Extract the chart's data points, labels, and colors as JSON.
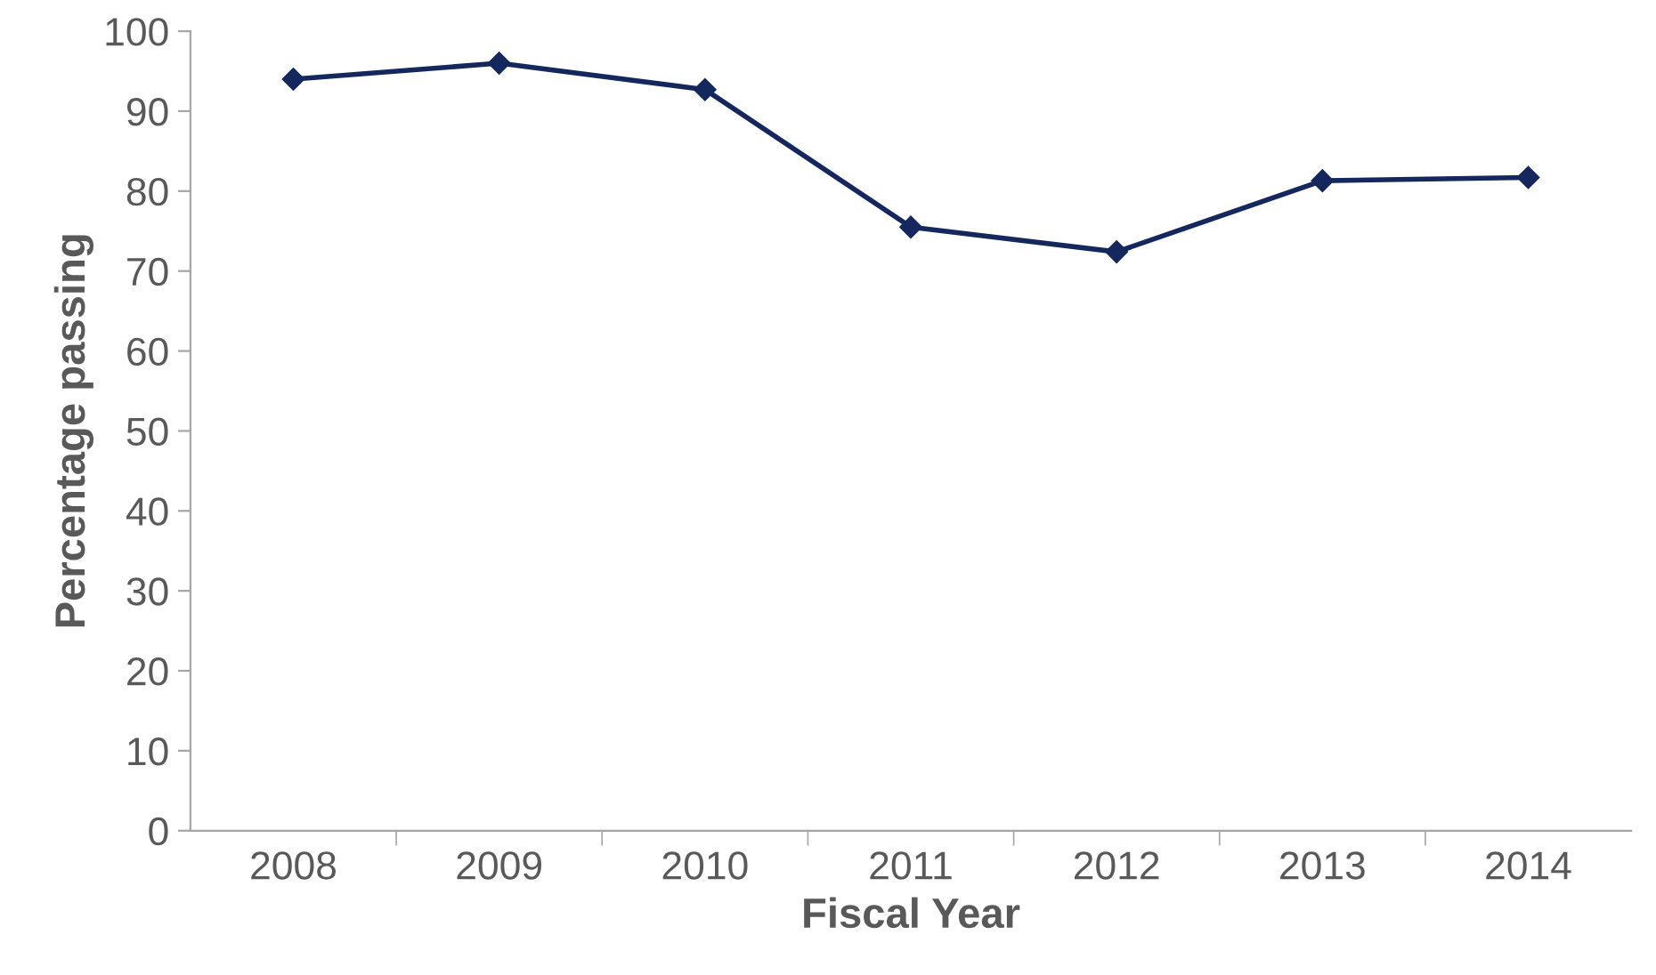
{
  "chart_data": {
    "type": "line",
    "xlabel": "Fiscal Year",
    "ylabel": "Percentage passing",
    "categories": [
      "2008",
      "2009",
      "2010",
      "2011",
      "2012",
      "2013",
      "2014"
    ],
    "series": [
      {
        "color": "#14285e",
        "values": [
          94.0,
          96.0,
          92.7,
          75.5,
          72.4,
          81.3,
          81.7
        ]
      }
    ],
    "ylim": [
      0,
      100
    ],
    "yticks": [
      0,
      10,
      20,
      30,
      40,
      50,
      60,
      70,
      80,
      90,
      100
    ],
    "grid": false,
    "legend": false,
    "marker": "diamond",
    "line_style": "solid"
  }
}
